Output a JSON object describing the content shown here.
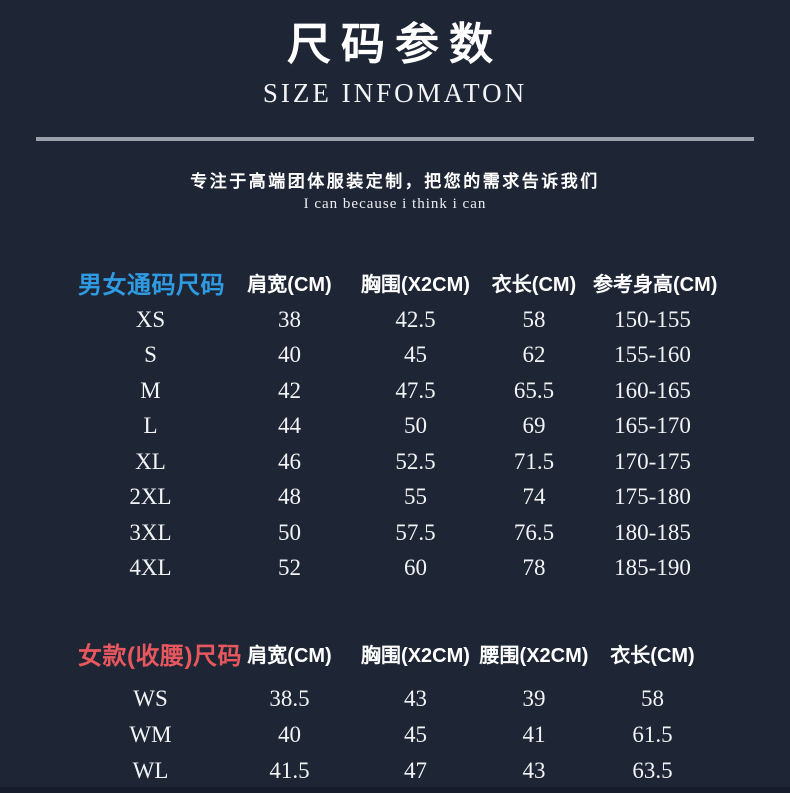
{
  "theme": {
    "background": "#1e2534",
    "text": "#f5f6f8",
    "accent_blue": "#2f9be2",
    "accent_red": "#e8575d",
    "divider": "#9ba1ab"
  },
  "header": {
    "title_cn": "尺码参数",
    "title_en": "SIZE INFOMATON",
    "tagline_cn": "专注于高端团体服装定制，把您的需求告诉我们",
    "tagline_en": "I can because i think i can"
  },
  "tables": [
    {
      "id": "unisex",
      "label": "男女通码尺码",
      "label_color": "#2f9be2",
      "columns": [
        "肩宽(CM)",
        "胸围(X2CM)",
        "衣长(CM)",
        "参考身高(CM)"
      ],
      "rows": [
        {
          "size": "XS",
          "values": [
            "38",
            "42.5",
            "58",
            "150-155"
          ]
        },
        {
          "size": "S",
          "values": [
            "40",
            "45",
            "62",
            "155-160"
          ]
        },
        {
          "size": "M",
          "values": [
            "42",
            "47.5",
            "65.5",
            "160-165"
          ]
        },
        {
          "size": "L",
          "values": [
            "44",
            "50",
            "69",
            "165-170"
          ]
        },
        {
          "size": "XL",
          "values": [
            "46",
            "52.5",
            "71.5",
            "170-175"
          ]
        },
        {
          "size": "2XL",
          "values": [
            "48",
            "55",
            "74",
            "175-180"
          ]
        },
        {
          "size": "3XL",
          "values": [
            "50",
            "57.5",
            "76.5",
            "180-185"
          ]
        },
        {
          "size": "4XL",
          "values": [
            "52",
            "60",
            "78",
            "185-190"
          ]
        }
      ]
    },
    {
      "id": "women",
      "label": "女款(收腰)尺码",
      "label_color": "#e8575d",
      "columns": [
        "肩宽(CM)",
        "胸围(X2CM)",
        "腰围(X2CM)",
        "衣长(CM)"
      ],
      "rows": [
        {
          "size": "WS",
          "values": [
            "38.5",
            "43",
            "39",
            "58"
          ]
        },
        {
          "size": "WM",
          "values": [
            "40",
            "45",
            "41",
            "61.5"
          ]
        },
        {
          "size": "WL",
          "values": [
            "41.5",
            "47",
            "43",
            "63.5"
          ]
        }
      ]
    }
  ]
}
